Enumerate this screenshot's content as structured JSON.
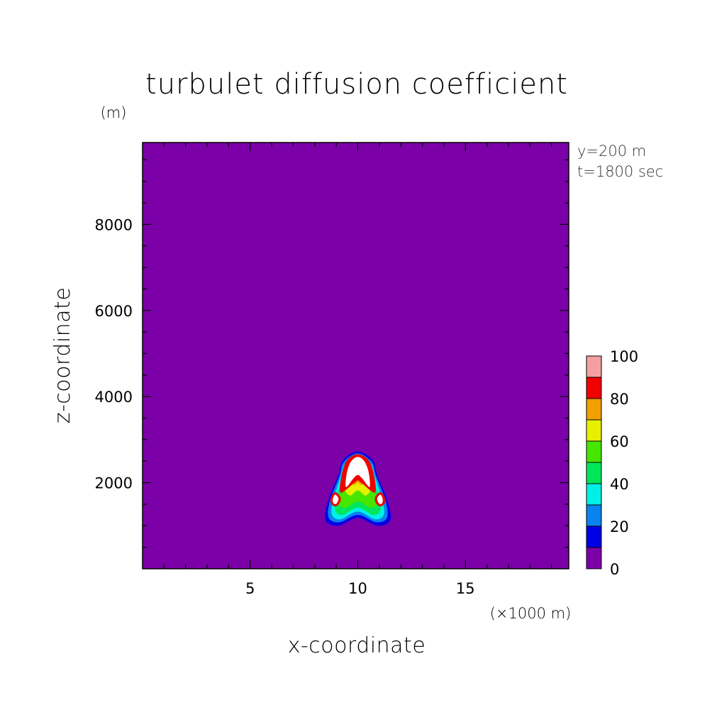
{
  "chart_data": {
    "type": "heatmap",
    "title": "turbulet diffusion coefficient",
    "xlabel": "x-coordinate",
    "ylabel": "z-coordinate",
    "x_unit": "(×1000 m)",
    "y_unit": "(m)",
    "annotations": [
      "y=200 m",
      "t=1800 sec"
    ],
    "xlim": [
      0,
      19.8
    ],
    "ylim": [
      0,
      9900
    ],
    "x_ticks": [
      5,
      10,
      15
    ],
    "y_ticks": [
      2000,
      4000,
      6000,
      8000
    ],
    "background_value": 0,
    "colorbar": {
      "levels": [
        0,
        10,
        20,
        30,
        40,
        50,
        60,
        70,
        80,
        90,
        100
      ],
      "tick_labels": [
        "0",
        "20",
        "40",
        "60",
        "80",
        "100"
      ],
      "colors": [
        "#7b00a8",
        "#0000e6",
        "#0a82f0",
        "#00f0e6",
        "#00e65a",
        "#46e600",
        "#e6f000",
        "#f0a000",
        "#f00000",
        "#f5a0a0"
      ]
    },
    "contours": [
      {
        "level": 10,
        "color": "#0000e6",
        "points": [
          [
            9.1,
            1000
          ],
          [
            10.0,
            1180
          ],
          [
            10.9,
            1000
          ],
          [
            11.5,
            1120
          ],
          [
            11.4,
            1550
          ],
          [
            10.9,
            2180
          ],
          [
            10.7,
            2520
          ],
          [
            10.0,
            2720
          ],
          [
            9.3,
            2520
          ],
          [
            9.1,
            2180
          ],
          [
            8.6,
            1550
          ],
          [
            8.5,
            1120
          ]
        ]
      },
      {
        "level": 20,
        "color": "#0a82f0",
        "points": [
          [
            9.15,
            1080
          ],
          [
            10.0,
            1250
          ],
          [
            10.85,
            1080
          ],
          [
            11.35,
            1180
          ],
          [
            11.3,
            1560
          ],
          [
            10.85,
            2160
          ],
          [
            10.65,
            2480
          ],
          [
            10.0,
            2680
          ],
          [
            9.35,
            2480
          ],
          [
            9.15,
            2160
          ],
          [
            8.7,
            1560
          ],
          [
            8.65,
            1180
          ]
        ]
      },
      {
        "level": 30,
        "color": "#00f0e6",
        "points": [
          [
            9.2,
            1150
          ],
          [
            10.0,
            1330
          ],
          [
            10.8,
            1150
          ],
          [
            11.2,
            1250
          ],
          [
            11.15,
            1580
          ],
          [
            10.8,
            2140
          ],
          [
            10.6,
            2440
          ],
          [
            10.0,
            2640
          ],
          [
            9.4,
            2440
          ],
          [
            9.2,
            2140
          ],
          [
            8.85,
            1580
          ],
          [
            8.8,
            1250
          ]
        ]
      },
      {
        "level": 40,
        "color": "#00e65a",
        "points": [
          [
            9.3,
            1250
          ],
          [
            10.0,
            1420
          ],
          [
            10.7,
            1250
          ],
          [
            11.05,
            1350
          ],
          [
            11.0,
            1620
          ],
          [
            10.7,
            2120
          ],
          [
            10.55,
            2400
          ],
          [
            10.0,
            2600
          ],
          [
            9.45,
            2400
          ],
          [
            9.3,
            2120
          ],
          [
            9.0,
            1620
          ],
          [
            8.95,
            1350
          ]
        ]
      },
      {
        "level": 50,
        "color": "#46e600",
        "points": [
          [
            9.45,
            1420
          ],
          [
            10.0,
            1560
          ],
          [
            10.55,
            1420
          ],
          [
            10.9,
            1500
          ],
          [
            10.8,
            1800
          ],
          [
            10.5,
            2150
          ],
          [
            10.0,
            2550
          ],
          [
            9.5,
            2150
          ],
          [
            9.2,
            1800
          ],
          [
            9.1,
            1500
          ]
        ]
      },
      {
        "level": 60,
        "color": "#e6f000",
        "points": [
          [
            9.65,
            1700
          ],
          [
            10.0,
            1820
          ],
          [
            10.35,
            1700
          ],
          [
            10.6,
            1850
          ],
          [
            10.45,
            2120
          ],
          [
            10.0,
            2500
          ],
          [
            9.55,
            2120
          ],
          [
            9.4,
            1850
          ]
        ]
      },
      {
        "level": 70,
        "color": "#f0a000",
        "points": [
          [
            9.8,
            1950
          ],
          [
            10.0,
            2000
          ],
          [
            10.2,
            1950
          ],
          [
            10.5,
            2150
          ],
          [
            10.4,
            2380
          ],
          [
            10.0,
            2580
          ],
          [
            9.6,
            2380
          ],
          [
            9.5,
            2150
          ]
        ]
      },
      {
        "level": 80,
        "color": "#f00000",
        "points": [
          [
            9.8,
            1980
          ],
          [
            10.0,
            2050
          ],
          [
            10.2,
            1980
          ],
          [
            10.8,
            1770
          ],
          [
            10.75,
            2180
          ],
          [
            10.5,
            2520
          ],
          [
            10.0,
            2660
          ],
          [
            9.5,
            2520
          ],
          [
            9.25,
            2180
          ],
          [
            9.2,
            1770
          ]
        ]
      },
      {
        "level": 90,
        "color": "#ffffff",
        "points": [
          [
            9.8,
            2100
          ],
          [
            10.0,
            2180
          ],
          [
            10.2,
            2100
          ],
          [
            10.55,
            1900
          ],
          [
            10.5,
            2250
          ],
          [
            10.3,
            2500
          ],
          [
            10.0,
            2600
          ],
          [
            9.7,
            2500
          ],
          [
            9.5,
            2250
          ],
          [
            9.45,
            1900
          ]
        ]
      },
      {
        "level": 80,
        "color": "#f00000",
        "points": [
          [
            8.75,
            1520
          ],
          [
            8.95,
            1450
          ],
          [
            9.15,
            1520
          ],
          [
            9.2,
            1660
          ],
          [
            8.95,
            1780
          ],
          [
            8.75,
            1660
          ]
        ]
      },
      {
        "level": 90,
        "color": "#ffffff",
        "points": [
          [
            8.85,
            1540
          ],
          [
            8.95,
            1500
          ],
          [
            9.05,
            1540
          ],
          [
            9.1,
            1640
          ],
          [
            8.95,
            1720
          ],
          [
            8.85,
            1640
          ]
        ]
      },
      {
        "level": 80,
        "color": "#f00000",
        "points": [
          [
            10.85,
            1520
          ],
          [
            11.05,
            1450
          ],
          [
            11.25,
            1520
          ],
          [
            11.25,
            1660
          ],
          [
            11.05,
            1780
          ],
          [
            10.8,
            1660
          ]
        ]
      },
      {
        "level": 90,
        "color": "#ffffff",
        "points": [
          [
            10.95,
            1540
          ],
          [
            11.05,
            1500
          ],
          [
            11.15,
            1540
          ],
          [
            11.15,
            1640
          ],
          [
            11.05,
            1720
          ],
          [
            10.9,
            1640
          ]
        ]
      }
    ]
  }
}
